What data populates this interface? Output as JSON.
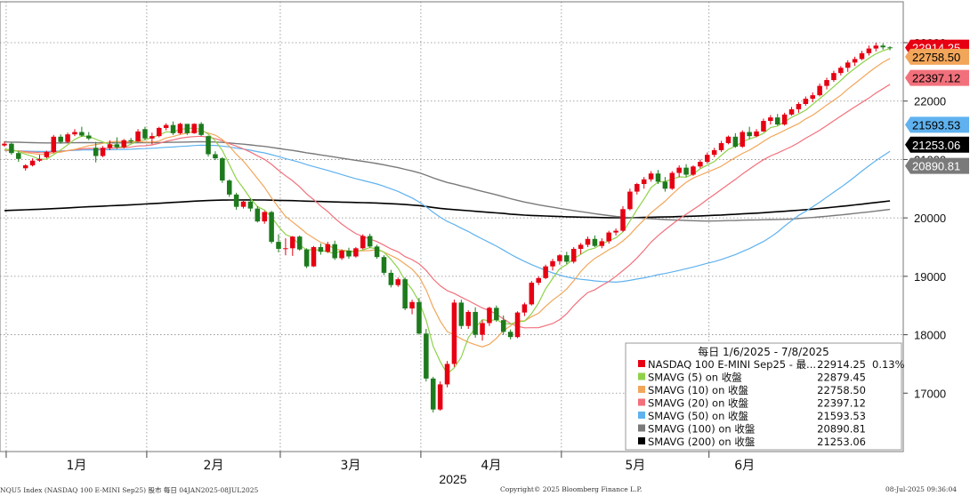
{
  "chart_data": {
    "type": "candlestick",
    "date_range": "1/6/2025 - 7/8/2025",
    "y_axis": {
      "ticks": [
        17000,
        18000,
        19000,
        20000,
        21000,
        22000,
        23000
      ],
      "ylim": [
        16000,
        23700
      ],
      "position": "right"
    },
    "x_axis": {
      "month_labels": [
        "1月",
        "2月",
        "3月",
        "4月",
        "5月",
        "6月"
      ],
      "month_ticks": [
        1,
        21,
        40,
        60,
        80,
        101
      ],
      "year_label": "2025",
      "n_bars": 127
    },
    "grid": true,
    "colors": {
      "up": "#e60012",
      "down": "#1d7a1d",
      "sma5": "#8fd24a",
      "sma10": "#f2a65a",
      "sma20": "#f2707b",
      "sma50": "#5fb2ef",
      "sma100": "#7a7a7a",
      "sma200": "#000000"
    },
    "candles": [
      [
        21240,
        21310,
        21220,
        21270
      ],
      [
        21270,
        21290,
        21080,
        21110
      ],
      [
        21110,
        21140,
        20960,
        21010
      ],
      [
        20850,
        20920,
        20810,
        20900
      ],
      [
        20900,
        21020,
        20880,
        20980
      ],
      [
        20980,
        21080,
        20960,
        21010
      ],
      [
        21040,
        21150,
        21020,
        21130
      ],
      [
        21130,
        21420,
        21110,
        21390
      ],
      [
        21390,
        21430,
        21270,
        21300
      ],
      [
        21300,
        21460,
        21280,
        21430
      ],
      [
        21430,
        21520,
        21400,
        21470
      ],
      [
        21470,
        21560,
        21390,
        21410
      ],
      [
        21410,
        21470,
        21330,
        21360
      ],
      [
        21200,
        21300,
        20950,
        21060
      ],
      [
        21060,
        21230,
        21040,
        21200
      ],
      [
        21200,
        21330,
        21160,
        21260
      ],
      [
        21260,
        21380,
        21180,
        21210
      ],
      [
        21210,
        21350,
        21190,
        21330
      ],
      [
        21330,
        21370,
        21280,
        21310
      ],
      [
        21310,
        21520,
        21300,
        21480
      ],
      [
        21520,
        21560,
        21330,
        21360
      ],
      [
        21360,
        21460,
        21260,
        21400
      ],
      [
        21400,
        21560,
        21380,
        21540
      ],
      [
        21540,
        21620,
        21500,
        21590
      ],
      [
        21590,
        21650,
        21420,
        21450
      ],
      [
        21450,
        21630,
        21430,
        21610
      ],
      [
        21610,
        21560,
        21420,
        21450
      ],
      [
        21450,
        21620,
        21440,
        21610
      ],
      [
        21610,
        21640,
        21400,
        21420
      ],
      [
        21400,
        21410,
        21050,
        21090
      ],
      [
        21090,
        21140,
        20990,
        21020
      ],
      [
        21020,
        21040,
        20600,
        20640
      ],
      [
        20640,
        20660,
        20360,
        20400
      ],
      [
        20400,
        20430,
        20140,
        20190
      ],
      [
        20190,
        20310,
        20160,
        20280
      ],
      [
        20280,
        20330,
        20110,
        20160
      ],
      [
        20160,
        20200,
        19920,
        19940
      ],
      [
        19940,
        20120,
        19900,
        20100
      ],
      [
        20100,
        20120,
        19560,
        19590
      ],
      [
        19590,
        19720,
        19410,
        19470
      ],
      [
        19470,
        19650,
        19360,
        19480
      ],
      [
        19480,
        19690,
        19350,
        19680
      ],
      [
        19680,
        19700,
        19440,
        19460
      ],
      [
        19460,
        19480,
        19140,
        19170
      ],
      [
        19170,
        19520,
        19160,
        19500
      ],
      [
        19500,
        19560,
        19370,
        19420
      ],
      [
        19420,
        19590,
        19400,
        19550
      ],
      [
        19550,
        19610,
        19280,
        19310
      ],
      [
        19310,
        19460,
        19280,
        19440
      ],
      [
        19440,
        19490,
        19300,
        19340
      ],
      [
        19340,
        19500,
        19320,
        19480
      ],
      [
        19480,
        19720,
        19460,
        19690
      ],
      [
        19690,
        19730,
        19490,
        19510
      ],
      [
        19510,
        19540,
        19300,
        19330
      ],
      [
        19330,
        19360,
        19020,
        19060
      ],
      [
        19060,
        19110,
        18810,
        18850
      ],
      [
        18850,
        18980,
        18820,
        18950
      ],
      [
        18950,
        18980,
        18420,
        18450
      ],
      [
        18450,
        18600,
        18350,
        18560
      ],
      [
        18560,
        18630,
        18000,
        18020
      ],
      [
        18020,
        18100,
        17200,
        17250
      ],
      [
        17250,
        17280,
        16670,
        16720
      ],
      [
        16720,
        17200,
        16700,
        17150
      ],
      [
        17150,
        17550,
        17100,
        17500
      ],
      [
        17500,
        18600,
        17450,
        18550
      ],
      [
        18550,
        18600,
        18100,
        18150
      ],
      [
        18150,
        18420,
        18100,
        18390
      ],
      [
        18390,
        18470,
        17950,
        18000
      ],
      [
        18000,
        18250,
        17900,
        18200
      ],
      [
        18200,
        18480,
        18150,
        18460
      ],
      [
        18460,
        18500,
        18220,
        18250
      ],
      [
        18250,
        18330,
        18000,
        18050
      ],
      [
        18050,
        18090,
        17920,
        17960
      ],
      [
        17960,
        18400,
        17940,
        18380
      ],
      [
        18380,
        18550,
        18320,
        18520
      ],
      [
        18520,
        18920,
        18500,
        18890
      ],
      [
        18890,
        19000,
        18850,
        18970
      ],
      [
        18970,
        19200,
        18950,
        19170
      ],
      [
        19170,
        19300,
        19100,
        19260
      ],
      [
        19260,
        19380,
        19200,
        19360
      ],
      [
        19360,
        19420,
        19210,
        19250
      ],
      [
        19250,
        19500,
        19220,
        19470
      ],
      [
        19470,
        19570,
        19380,
        19540
      ],
      [
        19540,
        19680,
        19500,
        19640
      ],
      [
        19640,
        19700,
        19500,
        19520
      ],
      [
        19520,
        19650,
        19480,
        19600
      ],
      [
        19600,
        19780,
        19560,
        19750
      ],
      [
        19750,
        19820,
        19700,
        19780
      ],
      [
        19780,
        20200,
        19760,
        20150
      ],
      [
        20150,
        20500,
        20130,
        20450
      ],
      [
        20450,
        20600,
        20400,
        20580
      ],
      [
        20580,
        20700,
        20500,
        20660
      ],
      [
        20660,
        20800,
        20620,
        20760
      ],
      [
        20760,
        20820,
        20580,
        20620
      ],
      [
        20620,
        20700,
        20450,
        20500
      ],
      [
        20500,
        20800,
        20480,
        20770
      ],
      [
        20770,
        20900,
        20700,
        20860
      ],
      [
        20860,
        20920,
        20700,
        20740
      ],
      [
        20740,
        20900,
        20720,
        20880
      ],
      [
        20880,
        21000,
        20850,
        20960
      ],
      [
        20960,
        21120,
        20930,
        21080
      ],
      [
        21080,
        21200,
        21040,
        21160
      ],
      [
        21160,
        21320,
        21130,
        21280
      ],
      [
        21280,
        21410,
        21260,
        21390
      ],
      [
        21390,
        21450,
        21200,
        21220
      ],
      [
        21220,
        21500,
        21200,
        21470
      ],
      [
        21470,
        21560,
        21350,
        21400
      ],
      [
        21400,
        21520,
        21380,
        21480
      ],
      [
        21480,
        21700,
        21470,
        21660
      ],
      [
        21660,
        21760,
        21600,
        21720
      ],
      [
        21720,
        21780,
        21580,
        21600
      ],
      [
        21600,
        21800,
        21580,
        21770
      ],
      [
        21770,
        21900,
        21750,
        21860
      ],
      [
        21860,
        21980,
        21800,
        21950
      ],
      [
        21950,
        22080,
        21920,
        22040
      ],
      [
        22040,
        22150,
        21980,
        22100
      ],
      [
        22100,
        22300,
        22080,
        22260
      ],
      [
        22260,
        22400,
        22200,
        22360
      ],
      [
        22360,
        22520,
        22330,
        22480
      ],
      [
        22480,
        22600,
        22440,
        22570
      ],
      [
        22570,
        22700,
        22500,
        22660
      ],
      [
        22660,
        22760,
        22600,
        22720
      ],
      [
        22720,
        22860,
        22700,
        22820
      ],
      [
        22820,
        22950,
        22780,
        22900
      ],
      [
        22900,
        23000,
        22850,
        22950
      ],
      [
        22950,
        22990,
        22880,
        22920
      ],
      [
        22920,
        22940,
        22870,
        22910
      ]
    ],
    "legend": {
      "header": "每日 1/6/2025 - 7/8/2025",
      "entries": [
        {
          "name": "NASDAQ 100 E-MINI Sep25 - 最...",
          "value": "22914.25",
          "change": "0.13%",
          "color": "#e60012"
        },
        {
          "name": "SMAVG (5)  on 收盤",
          "value": "22879.45",
          "color": "#8fd24a"
        },
        {
          "name": "SMAVG (10)  on 收盤",
          "value": "22758.50",
          "color": "#f2a65a"
        },
        {
          "name": "SMAVG (20)  on 收盤",
          "value": "22397.12",
          "color": "#f2707b"
        },
        {
          "name": "SMAVG (50)  on 收盤",
          "value": "21593.53",
          "color": "#5fb2ef"
        },
        {
          "name": "SMAVG (100)  on 收盤",
          "value": "20890.81",
          "color": "#7a7a7a"
        },
        {
          "name": "SMAVG (200)  on 收盤",
          "value": "21253.06",
          "color": "#000000"
        }
      ]
    },
    "value_tags": [
      {
        "value": 22914.25,
        "label": "22914.25",
        "bg": "#e60012",
        "fg": "#ffffff"
      },
      {
        "value": 22758.5,
        "label": "22758.50",
        "bg": "#f2a65a",
        "fg": "#000000"
      },
      {
        "value": 22397.12,
        "label": "22397.12",
        "bg": "#f2707b",
        "fg": "#000000"
      },
      {
        "value": 21593.53,
        "label": "21593.53",
        "bg": "#5fb2ef",
        "fg": "#000000"
      },
      {
        "value": 21253.06,
        "label": "21253.06",
        "bg": "#000000",
        "fg": "#ffffff"
      },
      {
        "value": 20890.81,
        "label": "20890.81",
        "bg": "#7a7a7a",
        "fg": "#ffffff"
      }
    ]
  },
  "footer": {
    "left": "NQU5 Index (NASDAQ 100 E-MINI Sep25) 股市  每日 04JAN2025-08JUL2025",
    "center": "Copyright© 2025 Bloomberg Finance L.P.",
    "right": "08-Jul-2025 09:36:04"
  }
}
